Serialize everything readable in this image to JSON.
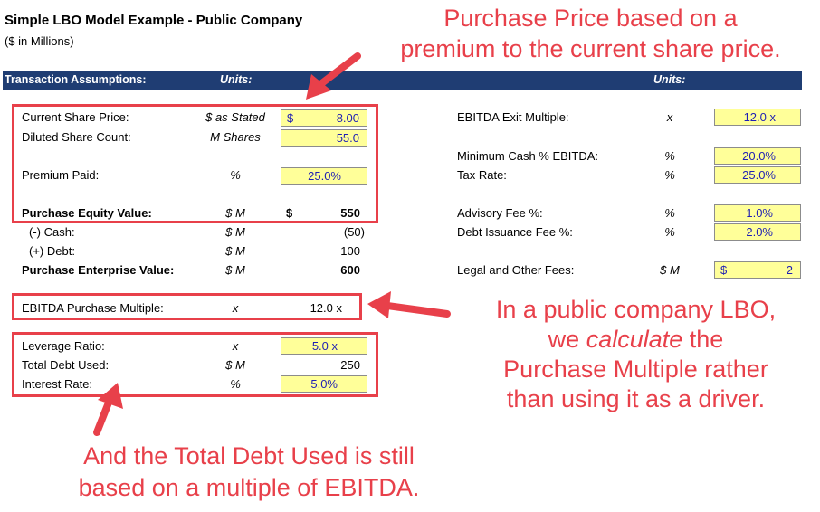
{
  "header": {
    "title": "Simple LBO Model Example - Public Company",
    "subtitle": "($ in Millions)",
    "section_label": "Transaction Assumptions:",
    "units_left": "Units:",
    "units_right": "Units:"
  },
  "left": {
    "share_price": {
      "label": "Current Share Price:",
      "unit": "$ as Stated",
      "symbol": "$",
      "value": "8.00"
    },
    "share_count": {
      "label": "Diluted Share Count:",
      "unit": "M Shares",
      "value": "55.0"
    },
    "premium": {
      "label": "Premium Paid:",
      "unit": "%",
      "value": "25.0%"
    },
    "equity_value": {
      "label": "Purchase Equity Value:",
      "unit": "$ M",
      "symbol": "$",
      "value": "550"
    },
    "cash": {
      "label": "(-) Cash:",
      "unit": "$ M",
      "value": "(50)"
    },
    "debt": {
      "label": "(+) Debt:",
      "unit": "$ M",
      "value": "100"
    },
    "enterprise_value": {
      "label": "Purchase Enterprise Value:",
      "unit": "$ M",
      "value": "600"
    },
    "ebitda_multiple": {
      "label": "EBITDA Purchase Multiple:",
      "unit": "x",
      "value": "12.0 x"
    },
    "leverage": {
      "label": "Leverage Ratio:",
      "unit": "x",
      "value": "5.0 x"
    },
    "total_debt": {
      "label": "Total Debt Used:",
      "unit": "$ M",
      "value": "250"
    },
    "interest": {
      "label": "Interest Rate:",
      "unit": "%",
      "value": "5.0%"
    }
  },
  "right": {
    "exit_multiple": {
      "label": "EBITDA Exit Multiple:",
      "unit": "x",
      "value": "12.0 x"
    },
    "min_cash": {
      "label": "Minimum Cash % EBITDA:",
      "unit": "%",
      "value": "20.0%"
    },
    "tax_rate": {
      "label": "Tax Rate:",
      "unit": "%",
      "value": "25.0%"
    },
    "advisory_fee": {
      "label": "Advisory Fee %:",
      "unit": "%",
      "value": "1.0%"
    },
    "debt_fee": {
      "label": "Debt Issuance Fee %:",
      "unit": "%",
      "value": "2.0%"
    },
    "legal_fees": {
      "label": "Legal and Other Fees:",
      "unit": "$ M",
      "symbol": "$",
      "value": "2"
    }
  },
  "annotations": {
    "top_line1": "Purchase Price based on a",
    "top_line2": "premium to the current share price.",
    "mid_line1": "In a public company LBO,",
    "mid_line2_pre": "we ",
    "mid_line2_em": "calculate",
    "mid_line2_post": " the",
    "mid_line3": "Purchase Multiple rather",
    "mid_line4": "than using it as a driver.",
    "bot_line1": "And the Total Debt Used is still",
    "bot_line2": "based on a multiple of EBITDA."
  },
  "colors": {
    "header_bg": "#1f3d73",
    "input_bg": "#ffff99",
    "annotation_red": "#e8404a",
    "input_text": "#1f1fb4"
  }
}
